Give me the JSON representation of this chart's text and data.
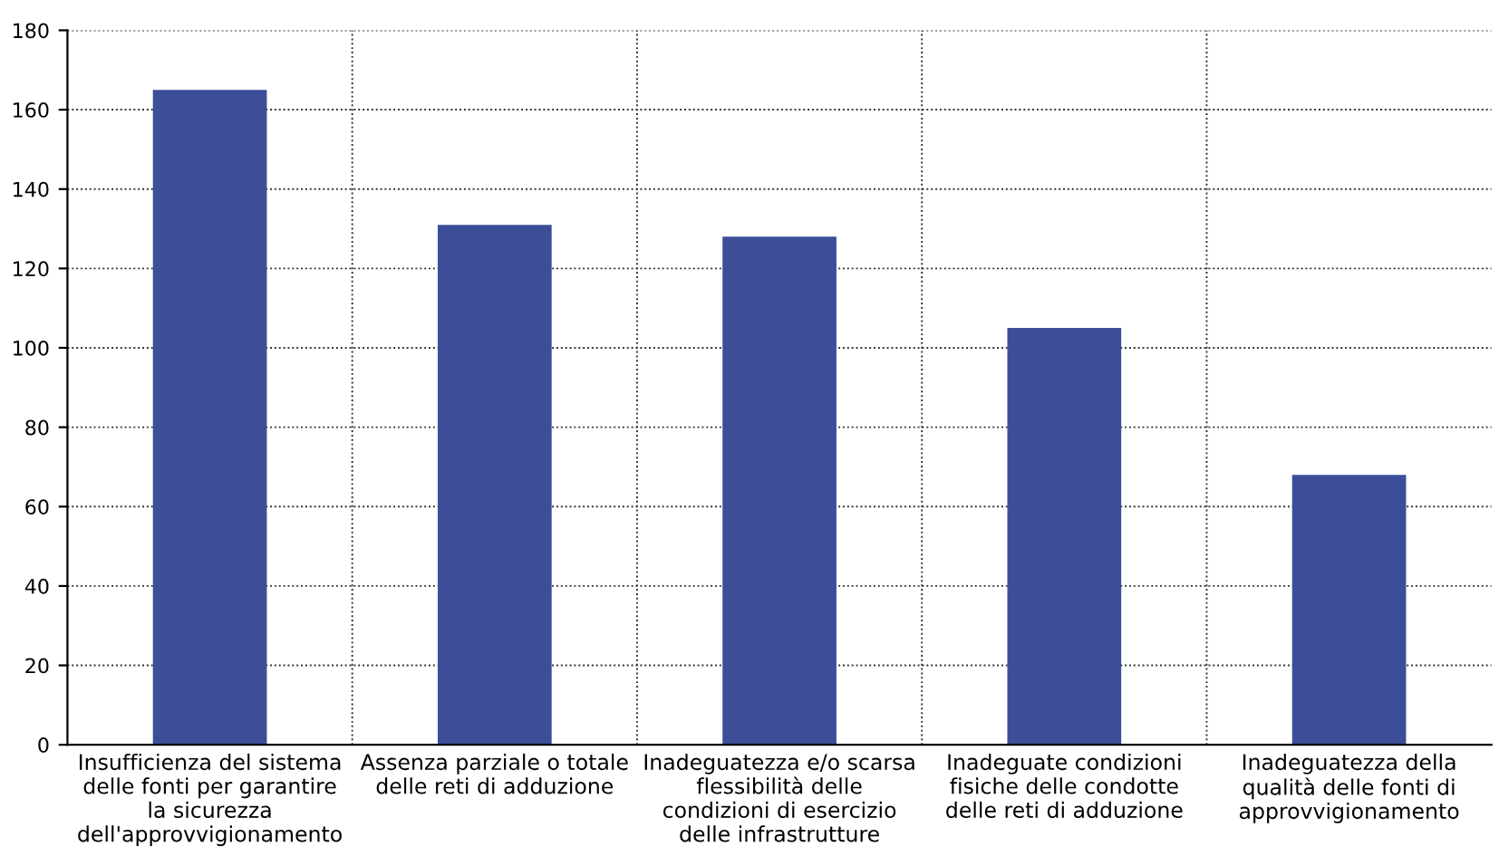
{
  "chart_data": {
    "type": "bar",
    "categories": [
      "Insufficienza del sistema\ndelle fonti per garantire\nla sicurezza\ndell'approvvigionamento",
      "Assenza parziale o totale\ndelle reti di adduzione",
      "Inadeguatezza e/o scarsa\nflessibilità delle\ncondizioni di esercizio\ndelle infrastrutture",
      "Inadeguate condizioni\nfisiche delle condotte\ndelle reti di adduzione",
      "Inadeguatezza della\nqualità delle fonti di\napprovvigionamento"
    ],
    "values": [
      165,
      131,
      128,
      105,
      68
    ],
    "color": "#3b4e97",
    "ylim": [
      0,
      180
    ],
    "yticks": [
      0,
      20,
      40,
      60,
      80,
      100,
      120,
      140,
      160,
      180
    ],
    "grid": true
  }
}
